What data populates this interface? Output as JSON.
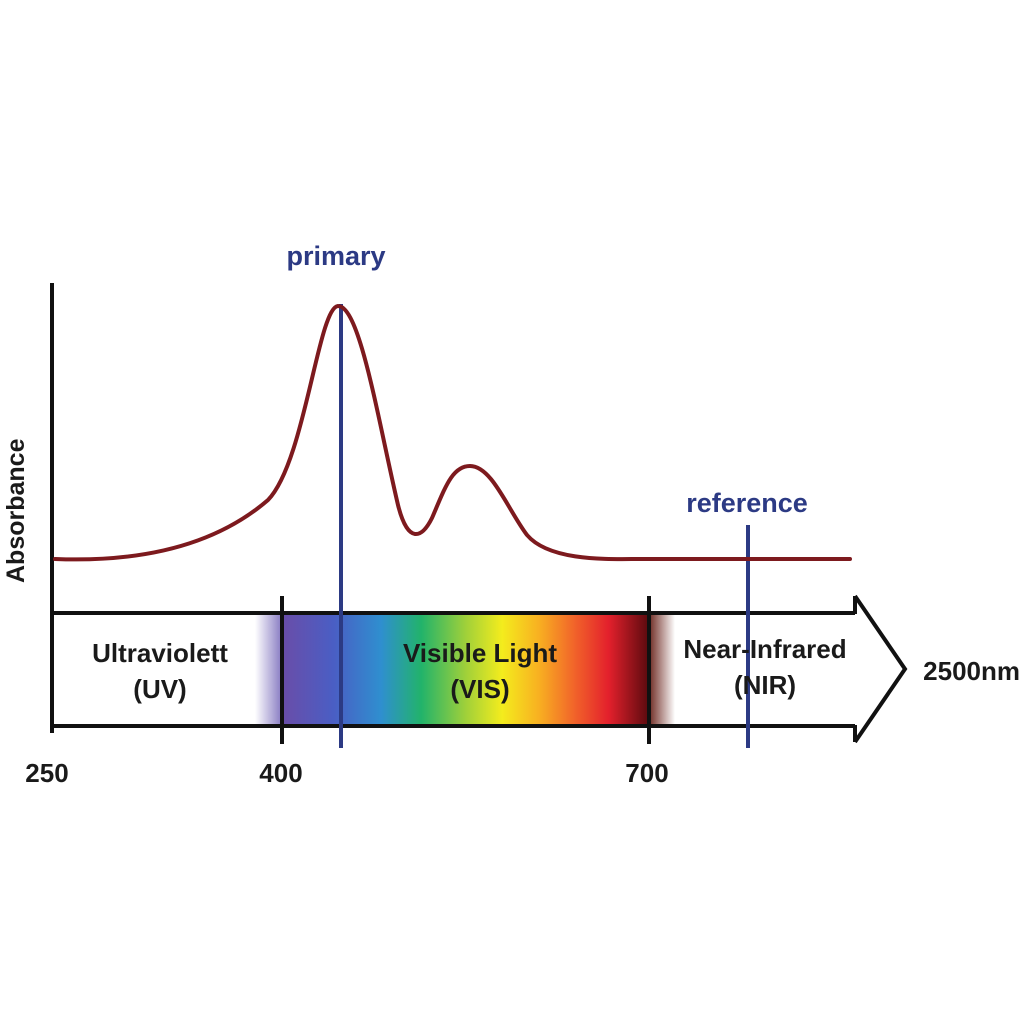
{
  "chart_data": {
    "type": "line",
    "ylabel": "Absorbance",
    "x_tick_labels": [
      "250",
      "400",
      "700"
    ],
    "x_end_label": "2500nm",
    "markers": [
      {
        "label": "primary",
        "wavelength_nm": 440
      },
      {
        "label": "reference",
        "wavelength_nm": 800
      }
    ],
    "bands": [
      {
        "line1": "Ultraviolett",
        "line2": "(UV)",
        "from_nm": 250,
        "to_nm": 400
      },
      {
        "line1": "Visible Light",
        "line2": "(VIS)",
        "from_nm": 400,
        "to_nm": 700
      },
      {
        "line1": "Near-Infrared",
        "line2": "(NIR)",
        "from_nm": 700,
        "to_nm": 2500
      }
    ],
    "spectrum_peaks": [
      {
        "wavelength_nm": 440,
        "relative_absorbance": 1.0
      },
      {
        "wavelength_nm": 550,
        "relative_absorbance": 0.36
      }
    ],
    "colors": {
      "curve": "#7d1a1e",
      "markers": "#2c3a84",
      "axes": "#111111"
    }
  }
}
